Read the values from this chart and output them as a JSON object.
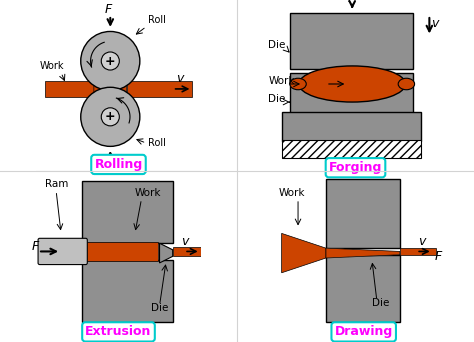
{
  "background_color": "#ffffff",
  "work_color": "#cc4400",
  "die_color": "#909090",
  "roll_color": "#b0b0b0",
  "roll_inner_color": "#d0d0d0",
  "process_label_color": "#ff00ff",
  "box_edge_color": "#00cccc",
  "labels": {
    "rolling": "Rolling",
    "forging": "Forging",
    "extrusion": "Extrusion",
    "drawing": "Drawing"
  },
  "figsize": [
    4.74,
    3.42
  ],
  "dpi": 100
}
